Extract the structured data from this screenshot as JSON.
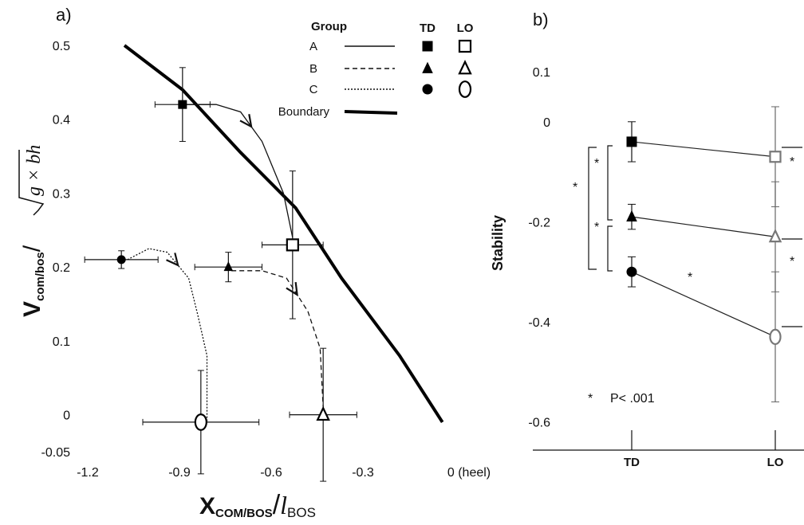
{
  "chart_data": [
    {
      "type": "scatter",
      "panel": "a)",
      "legend_title": "Group",
      "conditions": [
        "TD",
        "LO"
      ],
      "xlabel": {
        "symbol": "X",
        "subscript": "COM/BOS",
        "divider": "/",
        "denominator": "l",
        "denominator_subscript": "BOS"
      },
      "ylabel": {
        "symbol": "V",
        "subscript": "com/bos",
        "divider": "/",
        "radicand": "g × bh"
      },
      "xlim": [
        -1.2,
        0
      ],
      "xticks": [
        -1.2,
        -0.9,
        -0.6,
        -0.3,
        {
          "value": 0,
          "label": "0 (heel)"
        }
      ],
      "ylim": [
        -0.05,
        0.5
      ],
      "yticks": [
        -0.05,
        0,
        0.1,
        0.2,
        0.3,
        0.4,
        0.5
      ],
      "series": [
        {
          "name": "A",
          "marker": "square",
          "linestyle": "solid",
          "x": [
            -0.89,
            -0.53
          ],
          "values": [
            0.42,
            0.23
          ],
          "xerr": [
            0.09,
            0.1
          ],
          "yerr": [
            0.05,
            0.1
          ],
          "path_x": [
            -0.89,
            -0.78,
            -0.7,
            -0.63,
            -0.56,
            -0.53
          ],
          "path_y": [
            0.42,
            0.42,
            0.41,
            0.37,
            0.3,
            0.24
          ]
        },
        {
          "name": "B",
          "marker": "triangle",
          "linestyle": "dashed",
          "x": [
            -0.74,
            -0.43
          ],
          "values": [
            0.2,
            0
          ],
          "xerr": [
            0.11,
            0.11
          ],
          "yerr": [
            0.02,
            0.09
          ],
          "path_x": [
            -0.73,
            -0.63,
            -0.55,
            -0.48,
            -0.44,
            -0.43
          ],
          "path_y": [
            0.195,
            0.195,
            0.185,
            0.14,
            0.09,
            0.01
          ]
        },
        {
          "name": "C",
          "marker": "circle",
          "linestyle": "dotted",
          "x": [
            -1.09,
            -0.83
          ],
          "values": [
            0.21,
            -0.01
          ],
          "xerr": [
            0.12,
            0.19
          ],
          "yerr": [
            0.012,
            0.07
          ],
          "path_x": [
            -1.07,
            -1.0,
            -0.94,
            -0.87,
            -0.84,
            -0.81,
            -0.81
          ],
          "path_y": [
            0.21,
            0.225,
            0.22,
            0.185,
            0.135,
            0.08,
            -0.01
          ]
        }
      ],
      "boundary": {
        "name": "Boundary",
        "x": [
          -1.08,
          -0.89,
          -0.7,
          -0.52,
          -0.37,
          -0.18,
          -0.04
        ],
        "values": [
          0.5,
          0.44,
          0.355,
          0.28,
          0.185,
          0.08,
          -0.01
        ]
      }
    },
    {
      "type": "line",
      "panel": "b)",
      "categories": [
        "TD",
        "LO"
      ],
      "ylabel": "Stability",
      "ylim": [
        -0.65,
        0.1
      ],
      "yticks": [
        -0.6,
        -0.4,
        -0.2,
        0,
        0.1
      ],
      "series": [
        {
          "marker": "square",
          "values": [
            -0.04,
            -0.07
          ],
          "errors": [
            0.04,
            0.1
          ]
        },
        {
          "marker": "triangle",
          "values": [
            -0.19,
            -0.23
          ],
          "errors": [
            0.025,
            0.11
          ]
        },
        {
          "marker": "circle",
          "values": [
            -0.3,
            -0.43
          ],
          "errors": [
            0.03,
            0.13
          ]
        }
      ],
      "significance": {
        "symbol": "*",
        "note": "P< .001"
      }
    }
  ]
}
